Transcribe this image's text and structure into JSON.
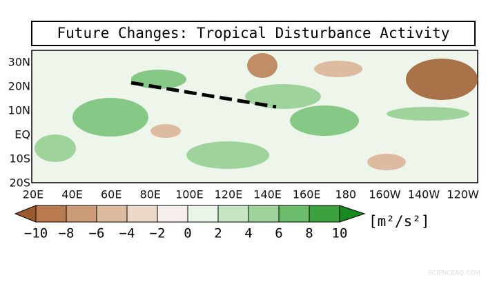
{
  "title": "Future Changes: Tropical Disturbance Activity",
  "lat_labels": [
    "30N",
    "20N",
    "10N",
    "EQ",
    "10S",
    "20S"
  ],
  "lon_labels": [
    "20E",
    "40E",
    "60E",
    "80E",
    "100E",
    "120E",
    "140E",
    "160E",
    "180",
    "160W",
    "140W",
    "120W"
  ],
  "colorbar": {
    "ticks": [
      {
        "value": -10,
        "label": "−10"
      },
      {
        "value": -8,
        "label": "−8"
      },
      {
        "value": -6,
        "label": "−6"
      },
      {
        "value": -4,
        "label": "−4"
      },
      {
        "value": -2,
        "label": "−2"
      },
      0,
      2,
      4,
      6,
      8,
      10
    ],
    "colors": [
      "#9c5a2c",
      "#b87a4e",
      "#cc9c78",
      "#ddbba0",
      "#ecd9c9",
      "#f5eeea",
      "#eaf5ea",
      "#c5e5c3",
      "#9ed39c",
      "#6bbd6b",
      "#3ea13f",
      "#168a1c"
    ],
    "unit": "[m²/s²]"
  },
  "watermark": "SCIENCEAQ.COM"
}
